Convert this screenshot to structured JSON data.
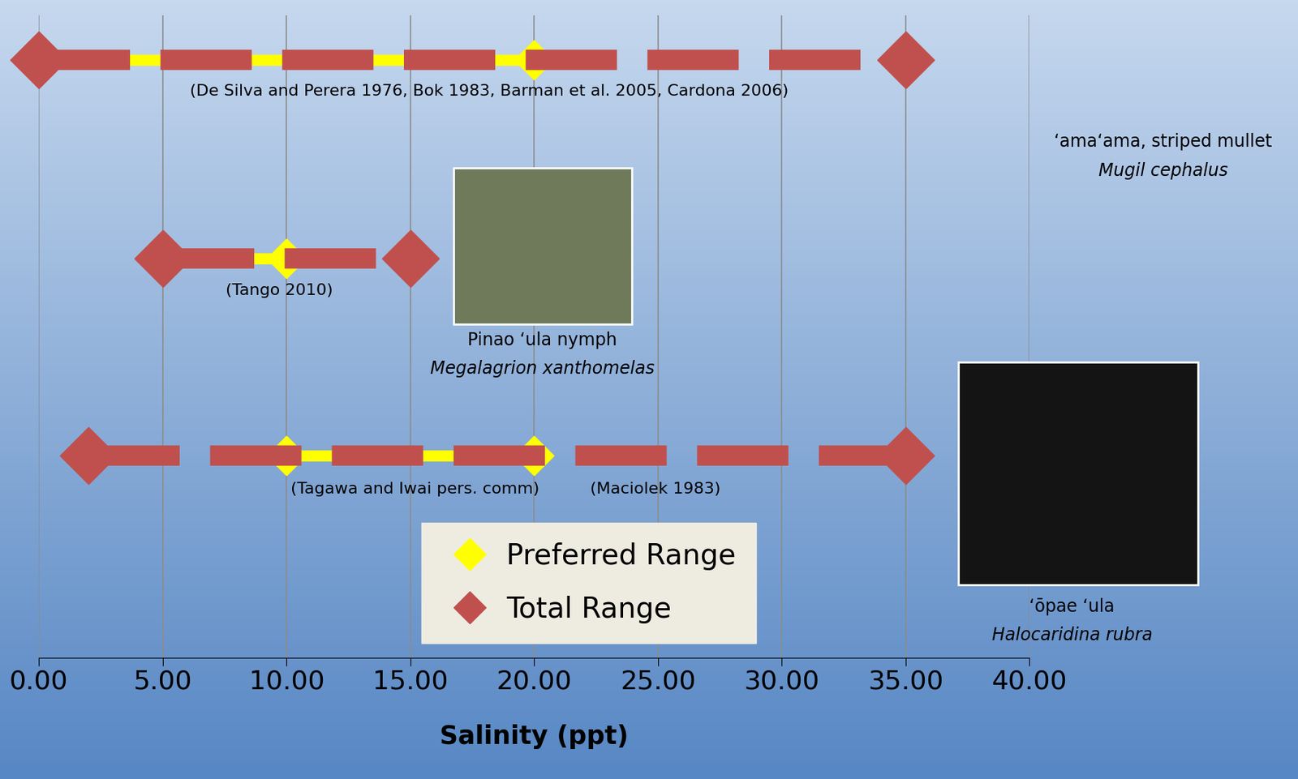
{
  "chart_data": {
    "type": "range",
    "xlabel": "Salinity (ppt)",
    "xlim": [
      0,
      40
    ],
    "xticks": [
      {
        "value": 0,
        "label": "0.00"
      },
      {
        "value": 5,
        "label": "5.00"
      },
      {
        "value": 10,
        "label": "10.00"
      },
      {
        "value": 15,
        "label": "15.00"
      },
      {
        "value": 20,
        "label": "20.00"
      },
      {
        "value": 25,
        "label": "25.00"
      },
      {
        "value": 30,
        "label": "30.00"
      },
      {
        "value": 35,
        "label": "35.00"
      },
      {
        "value": 40,
        "label": "40.00"
      }
    ],
    "grid": true,
    "tick_labels": "x",
    "legend": "lower center",
    "categories": [
      "‘ama‘ama, striped mullet",
      "Pinao ‘ula nymph",
      "‘ōpae ‘ula"
    ],
    "scientific_names": [
      "Mugil cephalus",
      "Megalagrion xanthomelas",
      "Halocaridina rubra"
    ],
    "citations": [
      [
        "(De Silva and Perera 1976, Bok 1983, Barman et al. 2005, Cardona 2006)"
      ],
      [
        "(Tango 2010)"
      ],
      [
        "(Tagawa and Iwai pers. comm)",
        "(Maciolek 1983)"
      ]
    ],
    "series": [
      {
        "name": "Preferred Range",
        "color": "#ffff00",
        "marker": "diamond",
        "line_style": "solid",
        "values": [
          [
            0,
            20
          ],
          [
            5,
            10
          ],
          [
            10,
            20
          ]
        ]
      },
      {
        "name": "Total Range",
        "color": "#c0504d",
        "marker": "diamond",
        "line_style": "dashed",
        "values": [
          [
            0,
            35
          ],
          [
            5,
            15
          ],
          [
            2,
            35
          ]
        ]
      }
    ]
  }
}
